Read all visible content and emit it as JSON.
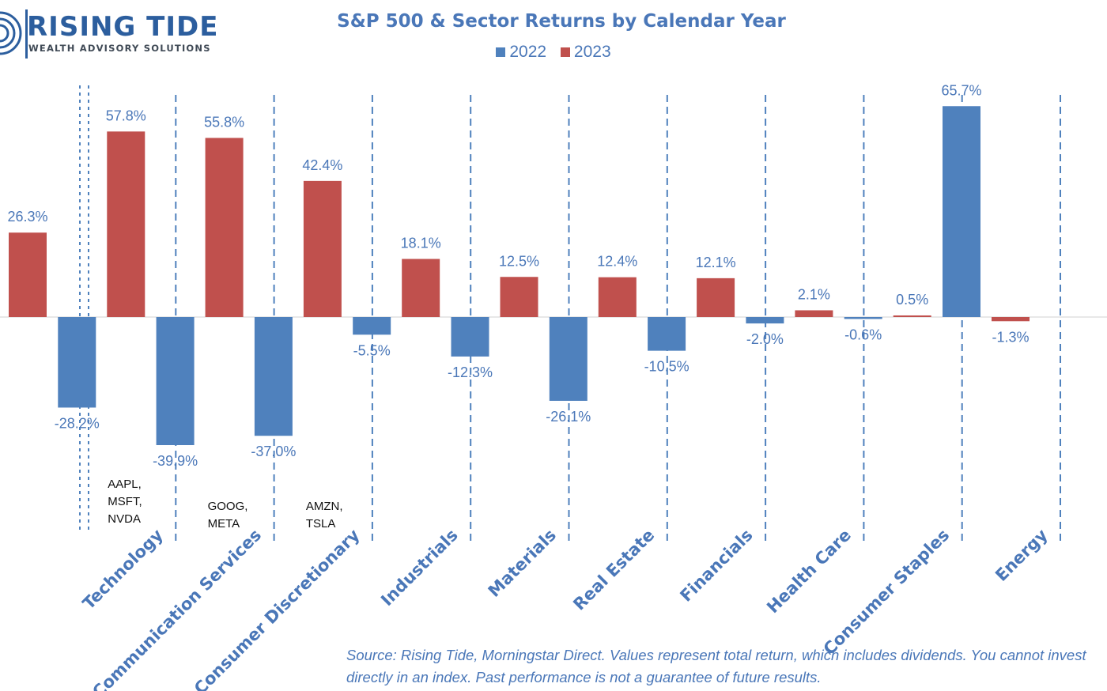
{
  "brand": {
    "name": "RISING TIDE",
    "tagline": "WEALTH ADVISORY SOLUTIONS"
  },
  "colors": {
    "blue": "#4f81bd",
    "red": "#c0504d",
    "label": "#4a77b8",
    "baseline": "#d9d9d9",
    "sector_text": "#4a77b8"
  },
  "chart_data": {
    "type": "bar",
    "title": "S&P 500 & Sector Returns by Calendar Year",
    "xlabel": "",
    "ylabel": "",
    "unit": "%",
    "ylim": [
      -52,
      74
    ],
    "legend_position": "top-center",
    "grid": false,
    "categories": [
      "",
      "Technology",
      "Communication Services",
      "Consumer Discretionary",
      "Industrials",
      "Materials",
      "Real Estate",
      "Financials",
      "Health Care",
      "Consumer Staples",
      "Energy"
    ],
    "series": [
      {
        "name": "2022",
        "color": "#4f81bd",
        "values": [
          null,
          -28.2,
          -39.9,
          -37.0,
          -5.5,
          -12.3,
          -26.1,
          -10.5,
          -2.0,
          -0.6,
          65.7
        ]
      },
      {
        "name": "2023",
        "color": "#c0504d",
        "values": [
          26.3,
          57.8,
          55.8,
          42.4,
          18.1,
          12.5,
          12.4,
          12.1,
          2.1,
          0.5,
          -1.3
        ]
      }
    ],
    "data_labels": [
      [
        "",
        "-28.2%",
        "-39.9%",
        "-37.0%",
        "-5.5%",
        "-12.3%",
        "-26.1%",
        "-10.5%",
        "-2.0%",
        "-0.6%",
        "65.7%"
      ],
      [
        "26.3%",
        "57.8%",
        "55.8%",
        "42.4%",
        "18.1%",
        "12.5%",
        "12.4%",
        "12.1%",
        "2.1%",
        "0.5%",
        "-1.3%"
      ]
    ],
    "annotations": [
      {
        "category": "Technology",
        "lines": [
          "AAPL,",
          "MSFT,",
          "NVDA"
        ]
      },
      {
        "category": "Communication Services",
        "lines": [
          "GOOG,",
          "META"
        ]
      },
      {
        "category": "Consumer Discretionary",
        "lines": [
          "AMZN,",
          "TSLA"
        ]
      }
    ]
  },
  "source_note": {
    "line1": "Source: Rising Tide, Morningstar Direct. Values represent total return, which includes dividends. You cannot invest",
    "line2": "directly in an index. Past performance is not a guarantee of future results."
  }
}
